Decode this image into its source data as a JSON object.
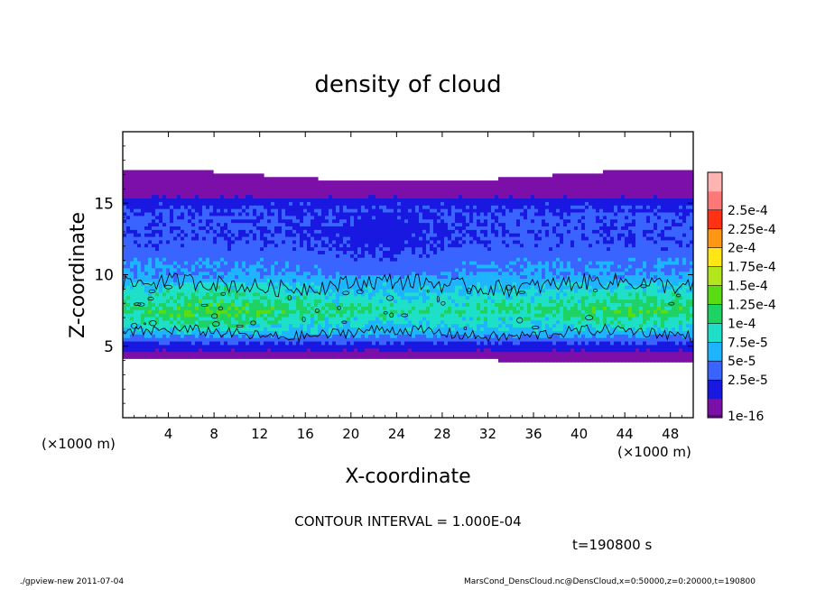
{
  "chart_data": {
    "type": "heatmap",
    "title": "density of cloud",
    "xlabel": "X-coordinate",
    "ylabel": "Z-coordinate",
    "x_unit": "(×1000 m)",
    "y_unit": "(×1000 m)",
    "xlim": [
      0,
      50
    ],
    "ylim": [
      0,
      20
    ],
    "x_ticks": [
      4,
      8,
      12,
      16,
      20,
      24,
      28,
      32,
      36,
      40,
      44,
      48
    ],
    "y_ticks": [
      5,
      10,
      15
    ],
    "contour_interval_text": "CONTOUR INTERVAL = 1.000E-04",
    "time_text": "t=190800 s",
    "colorbar": {
      "levels": [
        "1e-16",
        "2.5e-5",
        "5e-5",
        "7.5e-5",
        "1e-4",
        "1.25e-4",
        "1.5e-4",
        "1.75e-4",
        "2e-4",
        "2.25e-4",
        "2.5e-4"
      ],
      "colors": [
        "#7b0fa8",
        "#1818e0",
        "#3a64ff",
        "#1eb4ff",
        "#1ee0c8",
        "#1ed264",
        "#5adc14",
        "#b4e61e",
        "#ffe614",
        "#ff9614",
        "#ff3214",
        "#ff7878",
        "#ffb4b4"
      ]
    },
    "profile_z": [
      4,
      4.5,
      5,
      5.5,
      6,
      7,
      7.5,
      8,
      9,
      10,
      11,
      12,
      13,
      14,
      15,
      15.5,
      16,
      17
    ],
    "profile_density": [
      1e-16,
      2e-05,
      3.5e-05,
      6e-05,
      9e-05,
      0.000115,
      0.00013,
      0.000115,
      0.0001,
      8e-05,
      7e-05,
      5.5e-05,
      5.2e-05,
      5.5e-05,
      4.5e-05,
      2.2e-05,
      1e-16,
      1e-16
    ]
  },
  "footer": {
    "left": "./gpview-new   2011-07-04",
    "right": "MarsCond_DensCloud.nc@DensCloud,x=0:50000,z=0:20000,t=190800"
  }
}
